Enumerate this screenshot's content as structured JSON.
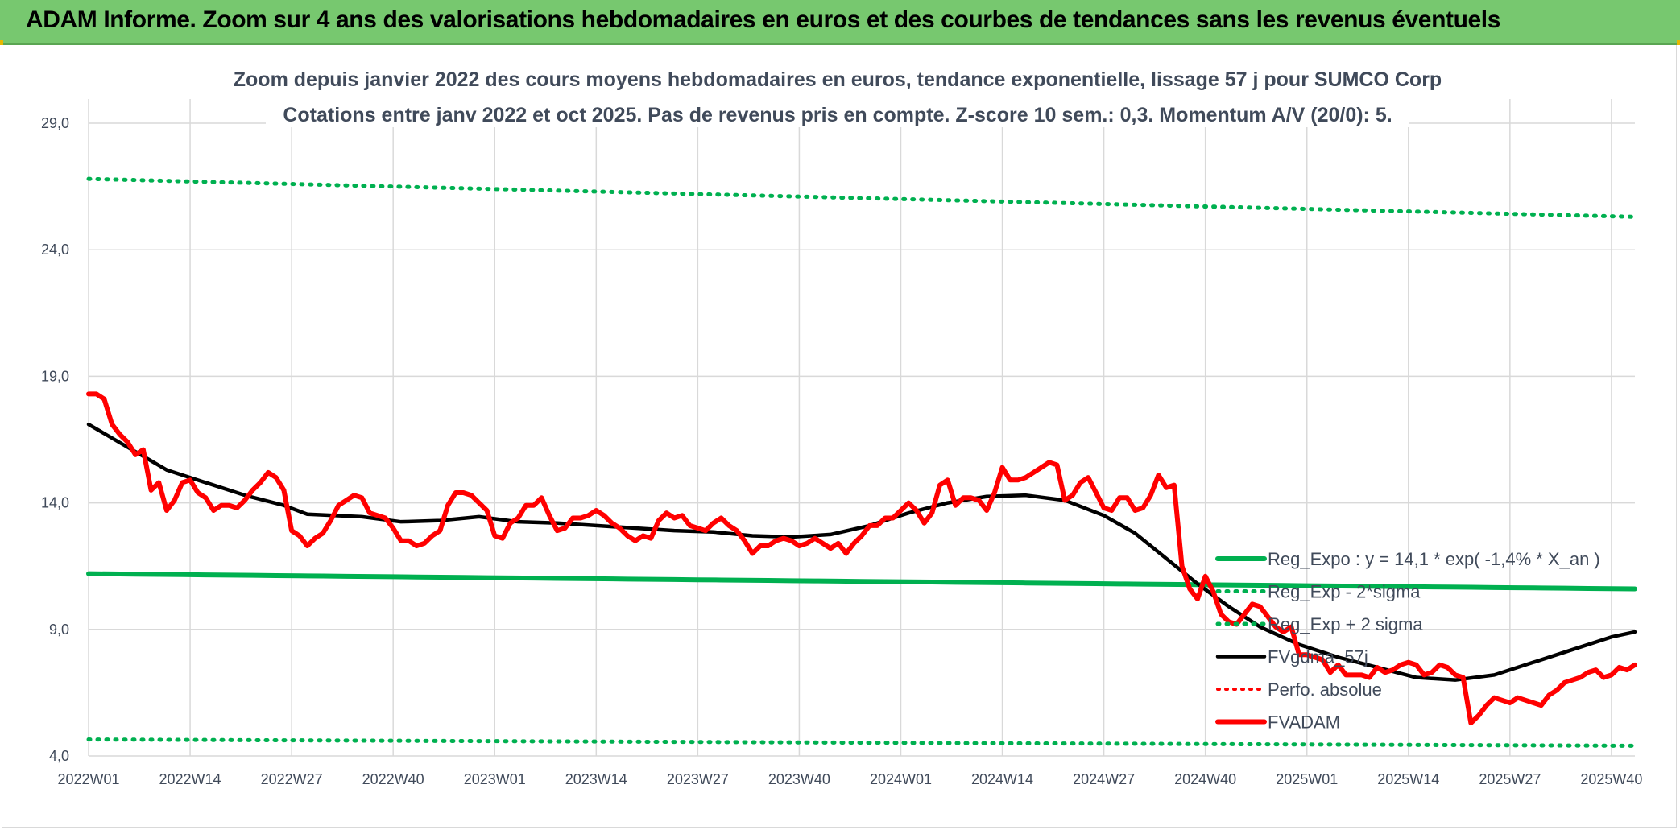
{
  "header": {
    "title": "ADAM Informe. Zoom sur 4 ans des valorisations hebdomadaires en euros et des courbes de tendances sans les revenus éventuels"
  },
  "colors": {
    "header_bg": "#77c86f",
    "green": "#00b050",
    "red": "#ff0000",
    "black": "#000000",
    "grid": "#d9d9d9",
    "text": "#404a5a"
  },
  "chart_data": {
    "type": "line",
    "title_line1": "Zoom depuis janvier 2022 des cours moyens hebdomadaires en euros, tendance exponentielle, lissage 57 j pour SUMCO Corp",
    "title_line2": "Cotations entre janv 2022 et oct 2025. Pas de revenus pris en compte. Z-score 10 sem.: 0,3. Momentum A/V (20/0): 5.",
    "ylim": [
      4.0,
      29.0
    ],
    "yticks": [
      "4,0",
      "9,0",
      "14,0",
      "19,0",
      "24,0",
      "29,0"
    ],
    "ytick_values": [
      4,
      9,
      14,
      19,
      24,
      29
    ],
    "x_count": 199,
    "xticks": [
      "2022W01",
      "2022W14",
      "2022W27",
      "2022W40",
      "2023W01",
      "2023W14",
      "2023W27",
      "2023W40",
      "2024W01",
      "2024W14",
      "2024W27",
      "2024W40",
      "2025W01",
      "2025W14",
      "2025W27",
      "2025W40"
    ],
    "xtick_index": [
      0,
      13,
      26,
      39,
      52,
      65,
      78,
      91,
      104,
      117,
      130,
      143,
      156,
      169,
      182,
      195
    ],
    "series": [
      {
        "name": "Reg_Expo : y = 14,1 * exp( -1,4% *  X_an )",
        "style": "green-solid",
        "start": 11.2,
        "end": 10.6
      },
      {
        "name": "Reg_Exp - 2*sigma",
        "style": "green-dotted",
        "start": 4.65,
        "end": 4.4
      },
      {
        "name": "Reg_Exp + 2 sigma",
        "style": "green-dotted",
        "start": 26.8,
        "end": 25.3
      },
      {
        "name": "FVgdma_57j",
        "style": "black-solid",
        "points": [
          [
            0,
            17.1
          ],
          [
            5,
            16.2
          ],
          [
            10,
            15.3
          ],
          [
            15,
            14.8
          ],
          [
            20,
            14.3
          ],
          [
            25,
            13.9
          ],
          [
            28,
            13.55
          ],
          [
            35,
            13.45
          ],
          [
            40,
            13.25
          ],
          [
            45,
            13.3
          ],
          [
            50,
            13.45
          ],
          [
            55,
            13.25
          ],
          [
            60,
            13.2
          ],
          [
            65,
            13.1
          ],
          [
            70,
            13.0
          ],
          [
            75,
            12.9
          ],
          [
            80,
            12.85
          ],
          [
            85,
            12.7
          ],
          [
            90,
            12.65
          ],
          [
            95,
            12.75
          ],
          [
            100,
            13.1
          ],
          [
            105,
            13.6
          ],
          [
            110,
            14.0
          ],
          [
            115,
            14.25
          ],
          [
            120,
            14.3
          ],
          [
            125,
            14.1
          ],
          [
            130,
            13.5
          ],
          [
            134,
            12.8
          ],
          [
            138,
            11.8
          ],
          [
            142,
            10.8
          ],
          [
            146,
            9.9
          ],
          [
            150,
            9.1
          ],
          [
            155,
            8.4
          ],
          [
            160,
            7.9
          ],
          [
            165,
            7.5
          ],
          [
            170,
            7.1
          ],
          [
            175,
            7.0
          ],
          [
            180,
            7.2
          ],
          [
            185,
            7.7
          ],
          [
            190,
            8.2
          ],
          [
            195,
            8.7
          ],
          [
            198,
            8.9
          ]
        ]
      },
      {
        "name": "Perfo. absolue",
        "style": "red-dotted",
        "points": []
      },
      {
        "name": "FVADAM",
        "style": "red-solid",
        "points": [
          [
            0,
            18.3
          ],
          [
            1,
            18.3
          ],
          [
            2,
            18.1
          ],
          [
            3,
            17.1
          ],
          [
            4,
            16.7
          ],
          [
            5,
            16.4
          ],
          [
            6,
            15.9
          ],
          [
            7,
            16.1
          ],
          [
            8,
            14.5
          ],
          [
            9,
            14.8
          ],
          [
            10,
            13.7
          ],
          [
            11,
            14.1
          ],
          [
            12,
            14.8
          ],
          [
            13,
            14.9
          ],
          [
            14,
            14.4
          ],
          [
            15,
            14.2
          ],
          [
            16,
            13.7
          ],
          [
            17,
            13.9
          ],
          [
            18,
            13.9
          ],
          [
            19,
            13.8
          ],
          [
            20,
            14.1
          ],
          [
            21,
            14.5
          ],
          [
            22,
            14.8
          ],
          [
            23,
            15.2
          ],
          [
            24,
            15.0
          ],
          [
            25,
            14.5
          ],
          [
            26,
            12.9
          ],
          [
            27,
            12.7
          ],
          [
            28,
            12.3
          ],
          [
            29,
            12.6
          ],
          [
            30,
            12.8
          ],
          [
            31,
            13.3
          ],
          [
            32,
            13.9
          ],
          [
            33,
            14.1
          ],
          [
            34,
            14.3
          ],
          [
            35,
            14.2
          ],
          [
            36,
            13.6
          ],
          [
            37,
            13.5
          ],
          [
            38,
            13.4
          ],
          [
            39,
            13.0
          ],
          [
            40,
            12.5
          ],
          [
            41,
            12.5
          ],
          [
            42,
            12.3
          ],
          [
            43,
            12.4
          ],
          [
            44,
            12.7
          ],
          [
            45,
            12.9
          ],
          [
            46,
            13.9
          ],
          [
            47,
            14.4
          ],
          [
            48,
            14.4
          ],
          [
            49,
            14.3
          ],
          [
            50,
            14.0
          ],
          [
            51,
            13.7
          ],
          [
            52,
            12.7
          ],
          [
            53,
            12.6
          ],
          [
            54,
            13.2
          ],
          [
            55,
            13.4
          ],
          [
            56,
            13.9
          ],
          [
            57,
            13.9
          ],
          [
            58,
            14.2
          ],
          [
            59,
            13.5
          ],
          [
            60,
            12.9
          ],
          [
            61,
            13.0
          ],
          [
            62,
            13.4
          ],
          [
            63,
            13.4
          ],
          [
            64,
            13.5
          ],
          [
            65,
            13.7
          ],
          [
            66,
            13.5
          ],
          [
            67,
            13.2
          ],
          [
            68,
            13.0
          ],
          [
            69,
            12.7
          ],
          [
            70,
            12.5
          ],
          [
            71,
            12.7
          ],
          [
            72,
            12.6
          ],
          [
            73,
            13.3
          ],
          [
            74,
            13.6
          ],
          [
            75,
            13.4
          ],
          [
            76,
            13.5
          ],
          [
            77,
            13.1
          ],
          [
            78,
            13.0
          ],
          [
            79,
            12.9
          ],
          [
            80,
            13.2
          ],
          [
            81,
            13.4
          ],
          [
            82,
            13.1
          ],
          [
            83,
            12.9
          ],
          [
            84,
            12.5
          ],
          [
            85,
            12.0
          ],
          [
            86,
            12.3
          ],
          [
            87,
            12.3
          ],
          [
            88,
            12.5
          ],
          [
            89,
            12.6
          ],
          [
            90,
            12.5
          ],
          [
            91,
            12.3
          ],
          [
            92,
            12.4
          ],
          [
            93,
            12.6
          ],
          [
            94,
            12.4
          ],
          [
            95,
            12.2
          ],
          [
            96,
            12.4
          ],
          [
            97,
            12.0
          ],
          [
            98,
            12.4
          ],
          [
            99,
            12.7
          ],
          [
            100,
            13.1
          ],
          [
            101,
            13.1
          ],
          [
            102,
            13.4
          ],
          [
            103,
            13.4
          ],
          [
            104,
            13.7
          ],
          [
            105,
            14.0
          ],
          [
            106,
            13.7
          ],
          [
            107,
            13.2
          ],
          [
            108,
            13.6
          ],
          [
            109,
            14.7
          ],
          [
            110,
            14.9
          ],
          [
            111,
            13.9
          ],
          [
            112,
            14.2
          ],
          [
            113,
            14.2
          ],
          [
            114,
            14.1
          ],
          [
            115,
            13.7
          ],
          [
            116,
            14.4
          ],
          [
            117,
            15.4
          ],
          [
            118,
            14.9
          ],
          [
            119,
            14.9
          ],
          [
            120,
            15.0
          ],
          [
            121,
            15.2
          ],
          [
            122,
            15.4
          ],
          [
            123,
            15.6
          ],
          [
            124,
            15.5
          ],
          [
            125,
            14.1
          ],
          [
            126,
            14.3
          ],
          [
            127,
            14.8
          ],
          [
            128,
            15.0
          ],
          [
            129,
            14.4
          ],
          [
            130,
            13.8
          ],
          [
            131,
            13.7
          ],
          [
            132,
            14.2
          ],
          [
            133,
            14.2
          ],
          [
            134,
            13.7
          ],
          [
            135,
            13.8
          ],
          [
            136,
            14.3
          ],
          [
            137,
            15.1
          ],
          [
            138,
            14.6
          ],
          [
            139,
            14.7
          ],
          [
            140,
            11.5
          ],
          [
            141,
            10.6
          ],
          [
            142,
            10.2
          ],
          [
            143,
            11.1
          ],
          [
            144,
            10.5
          ],
          [
            145,
            9.6
          ],
          [
            146,
            9.3
          ],
          [
            147,
            9.2
          ],
          [
            148,
            9.6
          ],
          [
            149,
            10.0
          ],
          [
            150,
            9.9
          ],
          [
            151,
            9.5
          ],
          [
            152,
            9.1
          ],
          [
            153,
            8.9
          ],
          [
            154,
            9.1
          ],
          [
            155,
            8.0
          ],
          [
            156,
            8.0
          ],
          [
            157,
            7.9
          ],
          [
            158,
            7.8
          ],
          [
            159,
            7.3
          ],
          [
            160,
            7.6
          ],
          [
            161,
            7.2
          ],
          [
            162,
            7.2
          ],
          [
            163,
            7.2
          ],
          [
            164,
            7.1
          ],
          [
            165,
            7.5
          ],
          [
            166,
            7.3
          ],
          [
            167,
            7.4
          ],
          [
            168,
            7.6
          ],
          [
            169,
            7.7
          ],
          [
            170,
            7.6
          ],
          [
            171,
            7.2
          ],
          [
            172,
            7.3
          ],
          [
            173,
            7.6
          ],
          [
            174,
            7.5
          ],
          [
            175,
            7.2
          ],
          [
            176,
            7.1
          ],
          [
            177,
            5.3
          ],
          [
            178,
            5.6
          ],
          [
            179,
            6.0
          ],
          [
            180,
            6.3
          ],
          [
            181,
            6.2
          ],
          [
            182,
            6.1
          ],
          [
            183,
            6.3
          ],
          [
            184,
            6.2
          ],
          [
            185,
            6.1
          ],
          [
            186,
            6.0
          ],
          [
            187,
            6.4
          ],
          [
            188,
            6.6
          ],
          [
            189,
            6.9
          ],
          [
            190,
            7.0
          ],
          [
            191,
            7.1
          ],
          [
            192,
            7.3
          ],
          [
            193,
            7.4
          ],
          [
            194,
            7.1
          ],
          [
            195,
            7.2
          ],
          [
            196,
            7.5
          ],
          [
            197,
            7.4
          ],
          [
            198,
            7.6
          ]
        ]
      }
    ],
    "legend_position": "right-middle"
  }
}
